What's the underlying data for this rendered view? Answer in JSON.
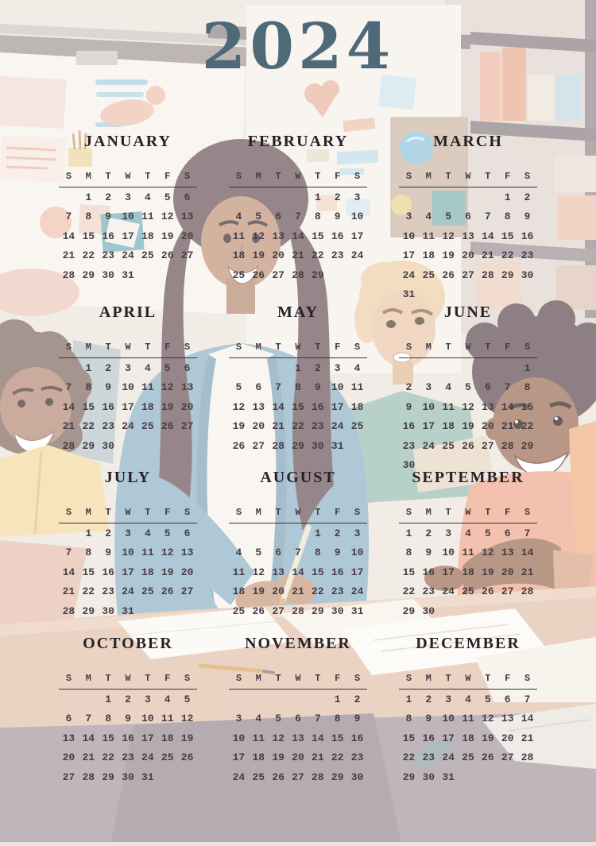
{
  "year_title": "2024",
  "colors": {
    "year_text": "#4e6a79",
    "month_title_text": "#272127",
    "number_text": "#453d43",
    "divider_rule": "#3a3338",
    "cardigan_blue": "#8db1c5",
    "desk_tan": "#e3c1ab",
    "wall_cream": "#ece4dc"
  },
  "weekdays": [
    "S",
    "M",
    "T",
    "W",
    "T",
    "F",
    "S"
  ],
  "months": [
    {
      "name": "JANUARY",
      "weeks": [
        [
          "",
          "1",
          "2",
          "3",
          "4",
          "5",
          "6"
        ],
        [
          "7",
          "8",
          "9",
          "10",
          "11",
          "12",
          "13"
        ],
        [
          "14",
          "15",
          "16",
          "17",
          "18",
          "19",
          "20"
        ],
        [
          "21",
          "22",
          "23",
          "24",
          "25",
          "26",
          "27"
        ],
        [
          "28",
          "29",
          "30",
          "31",
          "",
          "",
          ""
        ]
      ]
    },
    {
      "name": "FEBRUARY",
      "weeks": [
        [
          "",
          "",
          "",
          "",
          "1",
          "2",
          "3"
        ],
        [
          "4",
          "5",
          "6",
          "7",
          "8",
          "9",
          "10"
        ],
        [
          "11",
          "12",
          "13",
          "14",
          "15",
          "16",
          "17"
        ],
        [
          "18",
          "19",
          "20",
          "21",
          "22",
          "23",
          "24"
        ],
        [
          "25",
          "26",
          "27",
          "28",
          "29",
          "",
          ""
        ]
      ]
    },
    {
      "name": "MARCH",
      "weeks": [
        [
          "",
          "",
          "",
          "",
          "",
          "1",
          "2"
        ],
        [
          "3",
          "4",
          "5",
          "6",
          "7",
          "8",
          "9"
        ],
        [
          "10",
          "11",
          "12",
          "13",
          "14",
          "15",
          "16"
        ],
        [
          "17",
          "18",
          "19",
          "20",
          "21",
          "22",
          "23"
        ],
        [
          "24",
          "25",
          "26",
          "27",
          "28",
          "29",
          "30"
        ],
        [
          "31",
          "",
          "",
          "",
          "",
          "",
          ""
        ]
      ]
    },
    {
      "name": "APRIL",
      "weeks": [
        [
          "",
          "1",
          "2",
          "3",
          "4",
          "5",
          "6"
        ],
        [
          "7",
          "8",
          "9",
          "10",
          "11",
          "12",
          "13"
        ],
        [
          "14",
          "15",
          "16",
          "17",
          "18",
          "19",
          "20"
        ],
        [
          "21",
          "22",
          "23",
          "24",
          "25",
          "26",
          "27"
        ],
        [
          "28",
          "29",
          "30",
          "",
          "",
          "",
          ""
        ]
      ]
    },
    {
      "name": "MAY",
      "weeks": [
        [
          "",
          "",
          "",
          "1",
          "2",
          "3",
          "4"
        ],
        [
          "5",
          "6",
          "7",
          "8",
          "9",
          "10",
          "11"
        ],
        [
          "12",
          "13",
          "14",
          "15",
          "16",
          "17",
          "18"
        ],
        [
          "19",
          "20",
          "21",
          "22",
          "23",
          "24",
          "25"
        ],
        [
          "26",
          "27",
          "28",
          "29",
          "30",
          "31",
          ""
        ]
      ]
    },
    {
      "name": "JUNE",
      "weeks": [
        [
          "",
          "",
          "",
          "",
          "",
          "",
          "1"
        ],
        [
          "2",
          "3",
          "4",
          "5",
          "6",
          "7",
          "8"
        ],
        [
          "9",
          "10",
          "11",
          "12",
          "13",
          "14",
          "15"
        ],
        [
          "16",
          "17",
          "18",
          "19",
          "20",
          "21",
          "22"
        ],
        [
          "23",
          "24",
          "25",
          "26",
          "27",
          "28",
          "29"
        ],
        [
          "30",
          "",
          "",
          "",
          "",
          "",
          ""
        ]
      ]
    },
    {
      "name": "JULY",
      "weeks": [
        [
          "",
          "1",
          "2",
          "3",
          "4",
          "5",
          "6"
        ],
        [
          "7",
          "8",
          "9",
          "10",
          "11",
          "12",
          "13"
        ],
        [
          "14",
          "15",
          "16",
          "17",
          "18",
          "19",
          "20"
        ],
        [
          "21",
          "22",
          "23",
          "24",
          "25",
          "26",
          "27"
        ],
        [
          "28",
          "29",
          "30",
          "31",
          "",
          "",
          ""
        ]
      ]
    },
    {
      "name": "AUGUST",
      "weeks": [
        [
          "",
          "",
          "",
          "",
          "1",
          "2",
          "3"
        ],
        [
          "4",
          "5",
          "6",
          "7",
          "8",
          "9",
          "10"
        ],
        [
          "11",
          "12",
          "13",
          "14",
          "15",
          "16",
          "17"
        ],
        [
          "18",
          "19",
          "20",
          "21",
          "22",
          "23",
          "24"
        ],
        [
          "25",
          "26",
          "27",
          "28",
          "29",
          "30",
          "31"
        ]
      ]
    },
    {
      "name": "SEPTEMBER",
      "weeks": [
        [
          "1",
          "2",
          "3",
          "4",
          "5",
          "6",
          "7"
        ],
        [
          "8",
          "9",
          "10",
          "11",
          "12",
          "13",
          "14"
        ],
        [
          "15",
          "16",
          "17",
          "18",
          "19",
          "20",
          "21"
        ],
        [
          "22",
          "23",
          "24",
          "25",
          "26",
          "27",
          "28"
        ],
        [
          "29",
          "30",
          "",
          "",
          "",
          "",
          ""
        ]
      ]
    },
    {
      "name": "OCTOBER",
      "weeks": [
        [
          "",
          "",
          "1",
          "2",
          "3",
          "4",
          "5"
        ],
        [
          "6",
          "7",
          "8",
          "9",
          "10",
          "11",
          "12"
        ],
        [
          "13",
          "14",
          "15",
          "16",
          "17",
          "18",
          "19"
        ],
        [
          "20",
          "21",
          "22",
          "23",
          "24",
          "25",
          "26"
        ],
        [
          "27",
          "28",
          "29",
          "30",
          "31",
          "",
          ""
        ]
      ]
    },
    {
      "name": "NOVEMBER",
      "weeks": [
        [
          "",
          "",
          "",
          "",
          "",
          "1",
          "2"
        ],
        [
          "3",
          "4",
          "5",
          "6",
          "7",
          "8",
          "9"
        ],
        [
          "10",
          "11",
          "12",
          "13",
          "14",
          "15",
          "16"
        ],
        [
          "17",
          "18",
          "19",
          "20",
          "21",
          "22",
          "23"
        ],
        [
          "24",
          "25",
          "26",
          "27",
          "28",
          "29",
          "30"
        ]
      ]
    },
    {
      "name": "DECEMBER",
      "weeks": [
        [
          "1",
          "2",
          "3",
          "4",
          "5",
          "6",
          "7"
        ],
        [
          "8",
          "9",
          "10",
          "11",
          "12",
          "13",
          "14"
        ],
        [
          "15",
          "16",
          "17",
          "18",
          "19",
          "20",
          "21"
        ],
        [
          "22",
          "23",
          "24",
          "25",
          "26",
          "27",
          "28"
        ],
        [
          "29",
          "30",
          "31",
          "",
          "",
          "",
          ""
        ]
      ]
    }
  ]
}
